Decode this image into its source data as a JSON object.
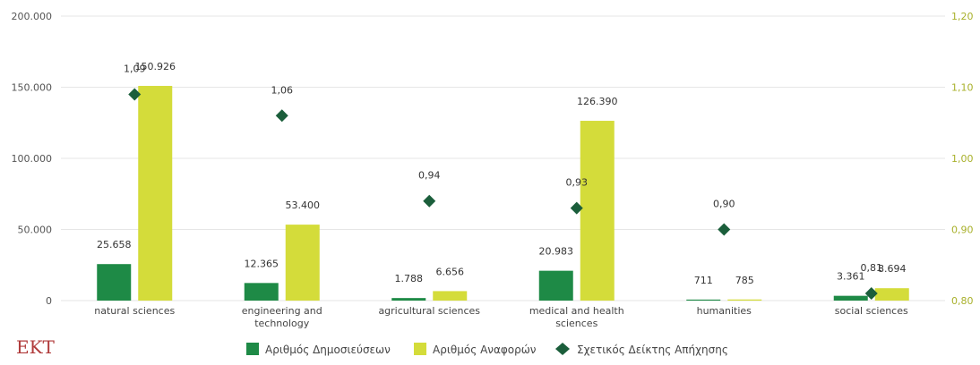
{
  "chart_data": {
    "type": "bar",
    "categories": [
      [
        "natural sciences"
      ],
      [
        "engineering and",
        "technology"
      ],
      [
        "agricultural sciences"
      ],
      [
        "medical and health",
        "sciences"
      ],
      [
        "humanities"
      ],
      [
        "social sciences"
      ]
    ],
    "series": [
      {
        "name": "Αριθμός Δημοσιεύσεων",
        "type": "bar",
        "axis": "left",
        "color": "#1e8a46",
        "values": [
          25658,
          12365,
          1788,
          20983,
          711,
          3361
        ],
        "labels": [
          "25.658",
          "12.365",
          "1.788",
          "20.983",
          "711",
          "3.361"
        ]
      },
      {
        "name": "Αριθμός Αναφορών",
        "type": "bar",
        "axis": "left",
        "color": "#d4dc3a",
        "values": [
          150926,
          53400,
          6656,
          126390,
          785,
          8694
        ],
        "labels": [
          "150.926",
          "53.400",
          "6.656",
          "126.390",
          "785",
          "8.694"
        ]
      },
      {
        "name": "Σχετικός Δείκτης Απήχησης",
        "type": "scatter",
        "marker": "diamond",
        "axis": "right",
        "color": "#1b5e3b",
        "values": [
          1.09,
          1.06,
          0.94,
          0.93,
          0.9,
          0.81
        ],
        "labels": [
          "1,09",
          "1,06",
          "0,94",
          "0,93",
          "0,90",
          "0,81"
        ]
      }
    ],
    "y_left": {
      "min": 0,
      "max": 200000,
      "ticks": [
        "0",
        "50.000",
        "100.000",
        "150.000",
        "200.000"
      ],
      "tick_values": [
        0,
        50000,
        100000,
        150000,
        200000
      ]
    },
    "y_right": {
      "min": 0.8,
      "max": 1.2,
      "ticks": [
        "0,80",
        "0,90",
        "1,00",
        "1,10",
        "1,20"
      ],
      "tick_values": [
        0.8,
        0.9,
        1.0,
        1.1,
        1.2
      ]
    },
    "grid": true,
    "legend_position": "bottom"
  },
  "logo": {
    "text": "EKT"
  },
  "colors": {
    "grid": "#e6e6e6",
    "right_axis": "#a8b02a"
  }
}
